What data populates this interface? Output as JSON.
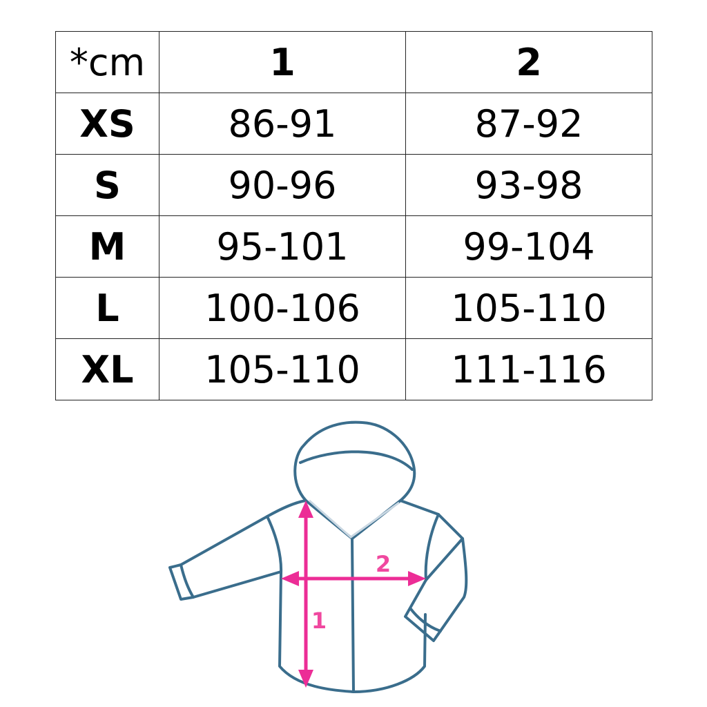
{
  "table": {
    "header": [
      "*cm",
      "1",
      "2"
    ],
    "rows": [
      [
        "XS",
        "86-91",
        "87-92"
      ],
      [
        "S",
        "90-96",
        "93-98"
      ],
      [
        "M",
        "95-101",
        "99-104"
      ],
      [
        "L",
        "100-106",
        "105-110"
      ],
      [
        "XL",
        "105-110",
        "111-116"
      ]
    ]
  },
  "diagram": {
    "label_length": "1",
    "label_width": "2",
    "outline_color": "#3a6d8c",
    "arrow_color": "#ec2d96"
  }
}
